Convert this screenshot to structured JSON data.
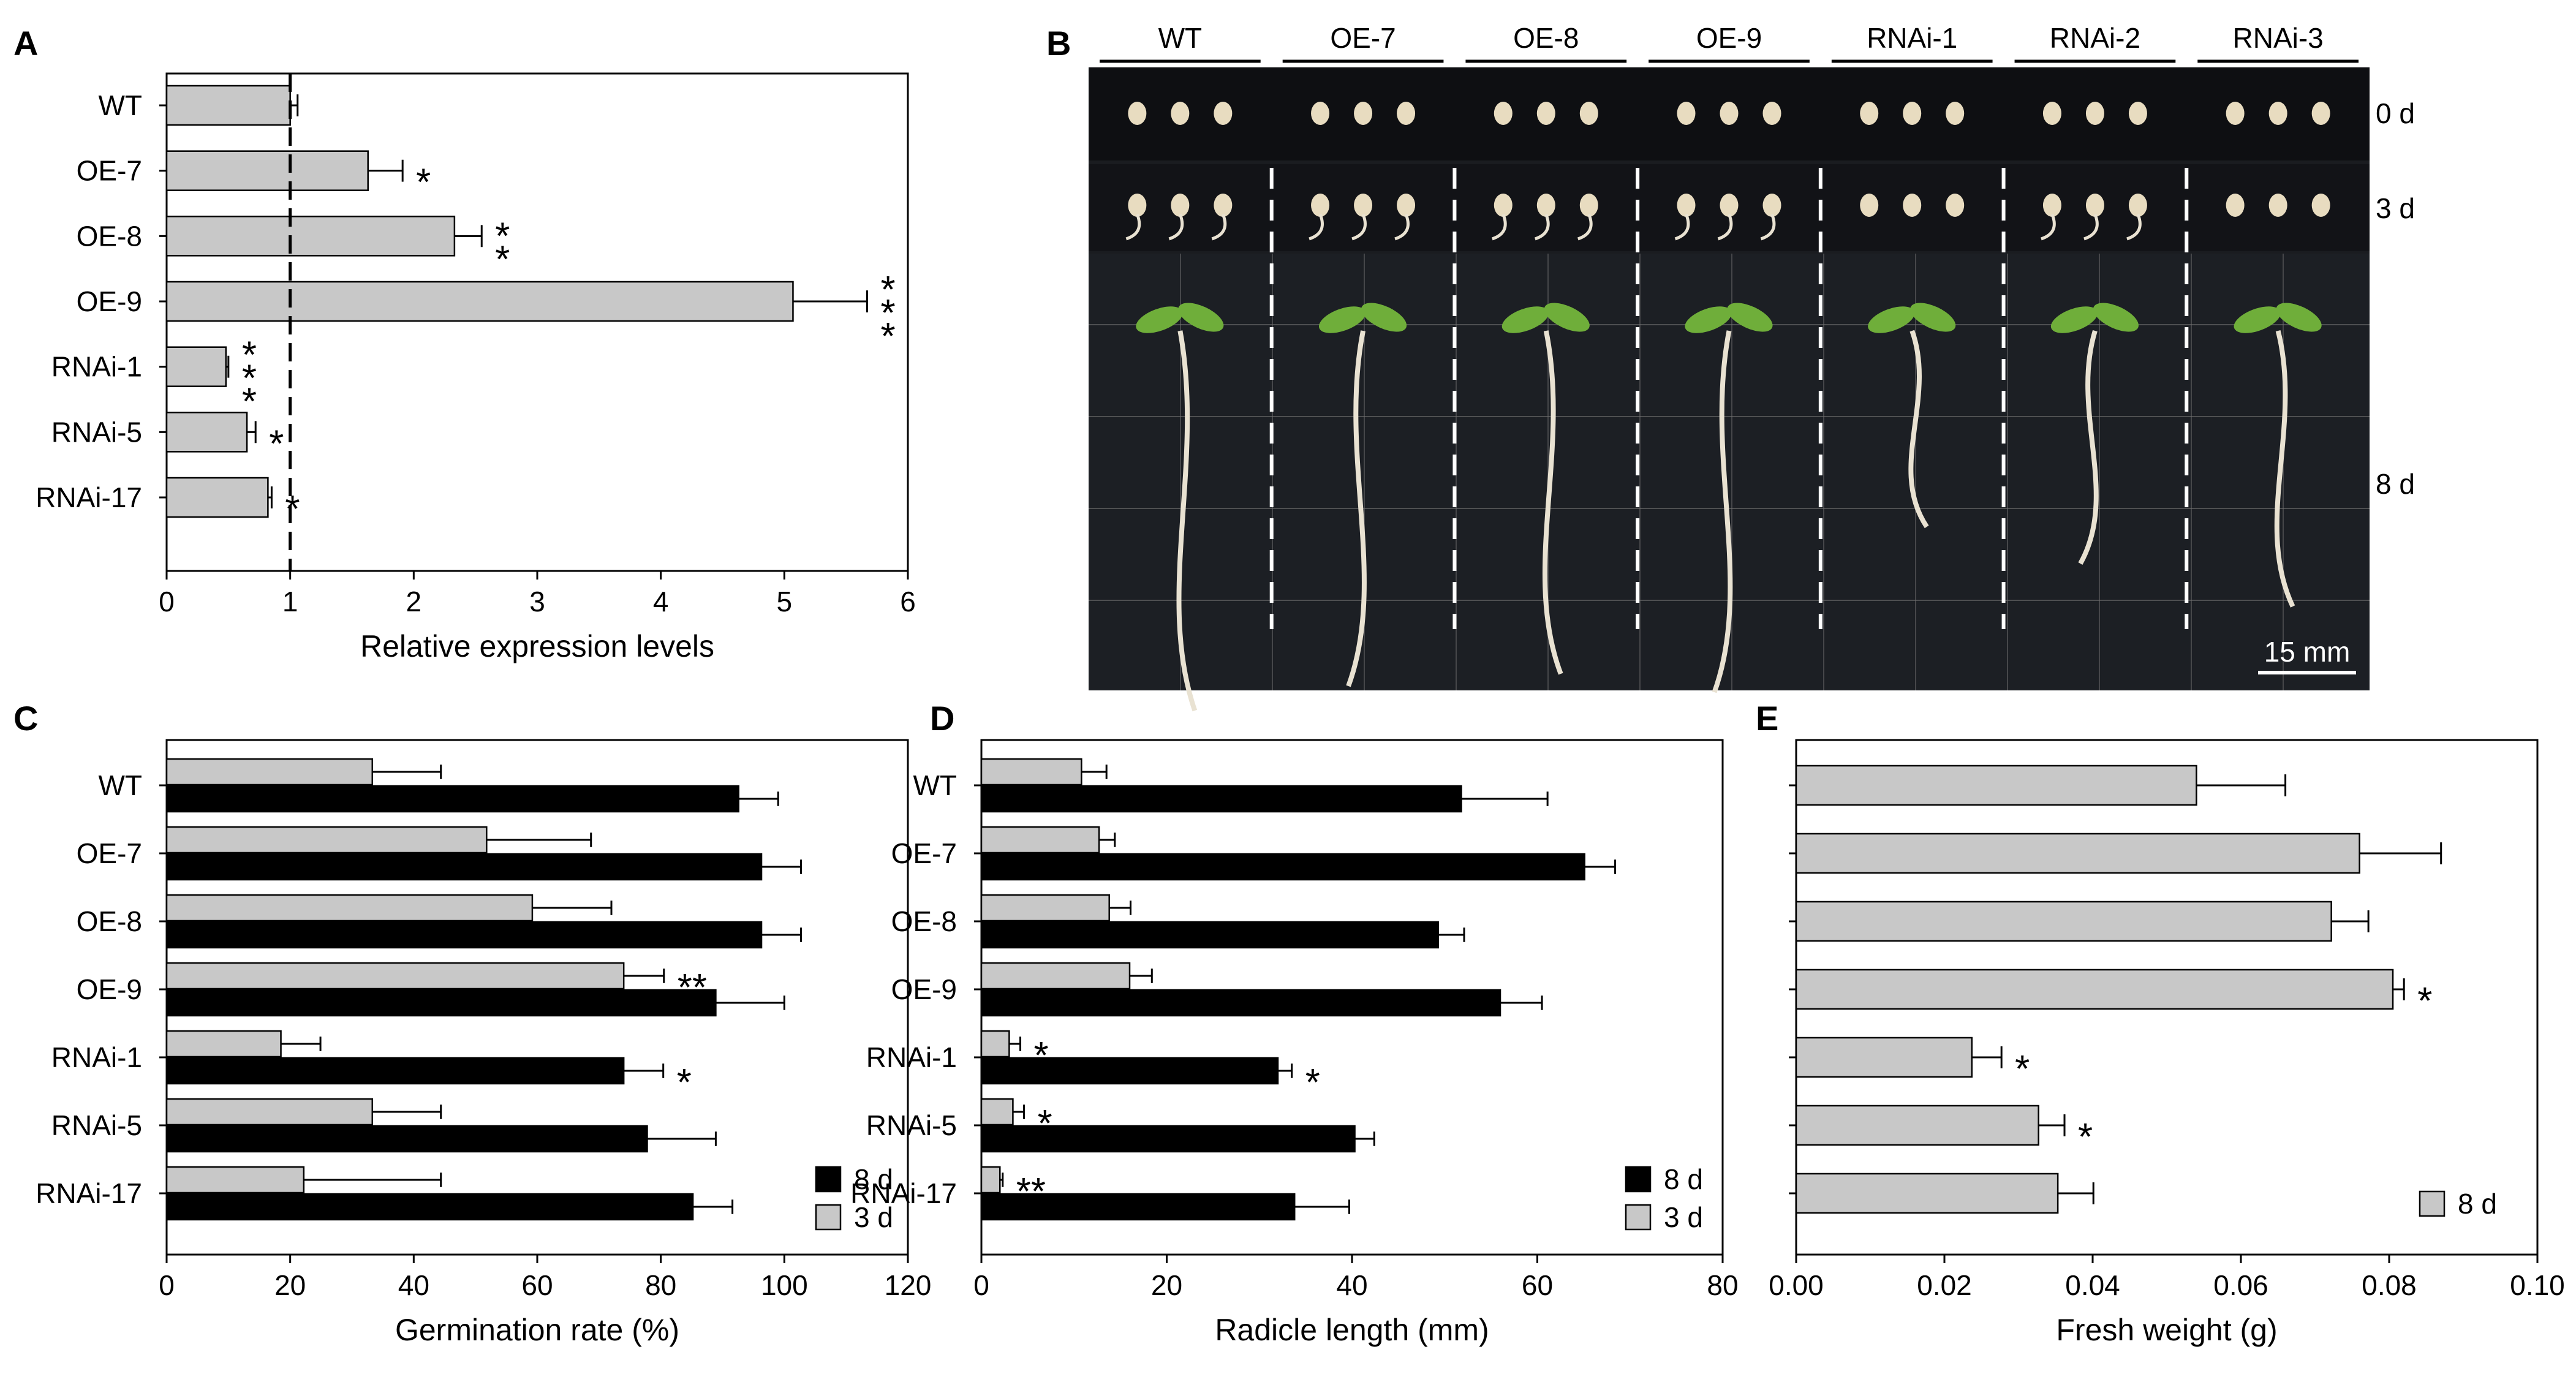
{
  "figure": {
    "panel_labels": [
      "A",
      "B",
      "C",
      "D",
      "E"
    ]
  },
  "photo": {
    "genotypes": [
      "WT",
      "OE-7",
      "OE-8",
      "OE-9",
      "RNAi-1",
      "RNAi-2",
      "RNAi-3"
    ],
    "time_labels": [
      "0 d",
      "3 d",
      "8 d"
    ],
    "scale_bar": "15 mm",
    "colors": {
      "background": "#1a1c20",
      "seed": "#e8dcc0",
      "cotyledon": "#6fae3a",
      "root": "#e9e2d2",
      "grid": "#707070"
    }
  },
  "chart_data": [
    {
      "panel": "A",
      "type": "bar",
      "orientation": "horizontal",
      "categories": [
        "WT",
        "OE-7",
        "OE-8",
        "OE-9",
        "RNAi-1",
        "RNAi-5",
        "RNAi-17"
      ],
      "series": [
        {
          "values": [
            1.0,
            1.63,
            2.33,
            5.07,
            0.48,
            0.65,
            0.82
          ],
          "errors": [
            0.06,
            0.28,
            0.22,
            0.6,
            0.02,
            0.07,
            0.03
          ],
          "significance": [
            "",
            "*",
            "**",
            "***",
            "***",
            "*",
            "*"
          ],
          "color": "#c8c8c8"
        }
      ],
      "reference_line": 1,
      "xlabel": "Relative expression levels",
      "xlim": [
        0,
        6
      ],
      "xticks": [
        0,
        1,
        2,
        3,
        4,
        5,
        6
      ],
      "grid": false
    },
    {
      "panel": "C",
      "type": "bar",
      "orientation": "horizontal",
      "categories": [
        "WT",
        "OE-7",
        "OE-8",
        "OE-9",
        "RNAi-1",
        "RNAi-5",
        "RNAi-17"
      ],
      "series": [
        {
          "name": "3 d",
          "color": "#c8c8c8",
          "values": [
            33.3,
            51.8,
            59.2,
            74.0,
            18.5,
            33.3,
            22.2
          ],
          "errors": [
            11.1,
            16.9,
            12.8,
            6.5,
            6.4,
            11.1,
            22.2
          ],
          "significance": [
            "",
            "",
            "",
            "**",
            "",
            "",
            ""
          ]
        },
        {
          "name": "8 d",
          "color": "#000000",
          "values": [
            92.6,
            96.3,
            96.3,
            88.9,
            74.0,
            77.8,
            85.2
          ],
          "errors": [
            6.4,
            6.4,
            6.4,
            11.1,
            6.4,
            11.1,
            6.4
          ],
          "significance": [
            "",
            "",
            "",
            "",
            "*",
            "",
            ""
          ]
        }
      ],
      "xlabel": "Germination rate (%)",
      "xlim": [
        0,
        120
      ],
      "xticks": [
        0,
        20,
        40,
        60,
        80,
        100,
        120
      ],
      "legend": [
        "8 d",
        "3 d"
      ],
      "legend_position": "bottom-right",
      "grid": false
    },
    {
      "panel": "D",
      "type": "bar",
      "orientation": "horizontal",
      "categories": [
        "WT",
        "OE-7",
        "OE-8",
        "OE-9",
        "RNAi-1",
        "RNAi-5",
        "RNAi-17"
      ],
      "series": [
        {
          "name": "3 d",
          "color": "#c8c8c8",
          "values": [
            10.8,
            12.7,
            13.8,
            16.0,
            3.0,
            3.4,
            2.0
          ],
          "errors": [
            2.7,
            1.7,
            2.3,
            2.4,
            1.2,
            1.2,
            0.3
          ],
          "significance": [
            "",
            "",
            "",
            "",
            "*",
            "*",
            "**"
          ]
        },
        {
          "name": "8 d",
          "color": "#000000",
          "values": [
            51.8,
            65.1,
            49.3,
            56.0,
            32.0,
            40.3,
            33.8
          ],
          "errors": [
            9.3,
            3.3,
            2.8,
            4.5,
            1.5,
            2.1,
            5.9
          ],
          "significance": [
            "",
            "",
            "",
            "",
            "*",
            "",
            ""
          ]
        }
      ],
      "xlabel": "Radicle length (mm)",
      "xlim": [
        0,
        80
      ],
      "xticks": [
        0,
        20,
        40,
        60,
        80
      ],
      "legend": [
        "8 d",
        "3 d"
      ],
      "legend_position": "bottom-right",
      "grid": false
    },
    {
      "panel": "E",
      "type": "bar",
      "orientation": "horizontal",
      "categories": [
        "WT",
        "OE-7",
        "OE-8",
        "OE-9",
        "RNAi-1",
        "RNAi-5",
        "RNAi-17"
      ],
      "show_category_labels": false,
      "series": [
        {
          "name": "8 d",
          "color": "#c8c8c8",
          "values": [
            0.054,
            0.076,
            0.0722,
            0.0805,
            0.0237,
            0.0327,
            0.0353
          ],
          "errors": [
            0.012,
            0.011,
            0.005,
            0.0015,
            0.004,
            0.0035,
            0.0048
          ],
          "significance": [
            "",
            "",
            "",
            "*",
            "*",
            "*",
            ""
          ]
        }
      ],
      "xlabel": "Fresh weight (g)",
      "xlim": [
        0,
        0.1
      ],
      "xticks": [
        "0.00",
        "0.02",
        "0.04",
        "0.06",
        "0.08",
        "0.10"
      ],
      "legend": [
        "8 d"
      ],
      "legend_position": "bottom-right",
      "grid": false
    }
  ]
}
